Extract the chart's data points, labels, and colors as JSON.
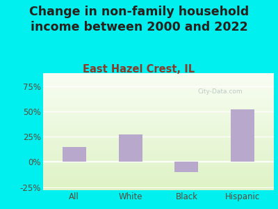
{
  "title": "Change in non-family household\nincome between 2000 and 2022",
  "subtitle": "East Hazel Crest, IL",
  "categories": [
    "All",
    "White",
    "Black",
    "Hispanic"
  ],
  "values": [
    15,
    27,
    -10,
    52
  ],
  "bar_color": "#b8a8cc",
  "title_color": "#2a1f1a",
  "subtitle_color": "#8b3a2a",
  "axis_label_color": "#5a4a3a",
  "background_outer": "#00efef",
  "ylim": [
    -28,
    88
  ],
  "yticks": [
    -25,
    0,
    25,
    50,
    75
  ],
  "ytick_labels": [
    "-25%",
    "0%",
    "25%",
    "50%",
    "75%"
  ],
  "watermark": "City-Data.com",
  "title_fontsize": 12.5,
  "subtitle_fontsize": 10.5,
  "tick_fontsize": 8.5
}
